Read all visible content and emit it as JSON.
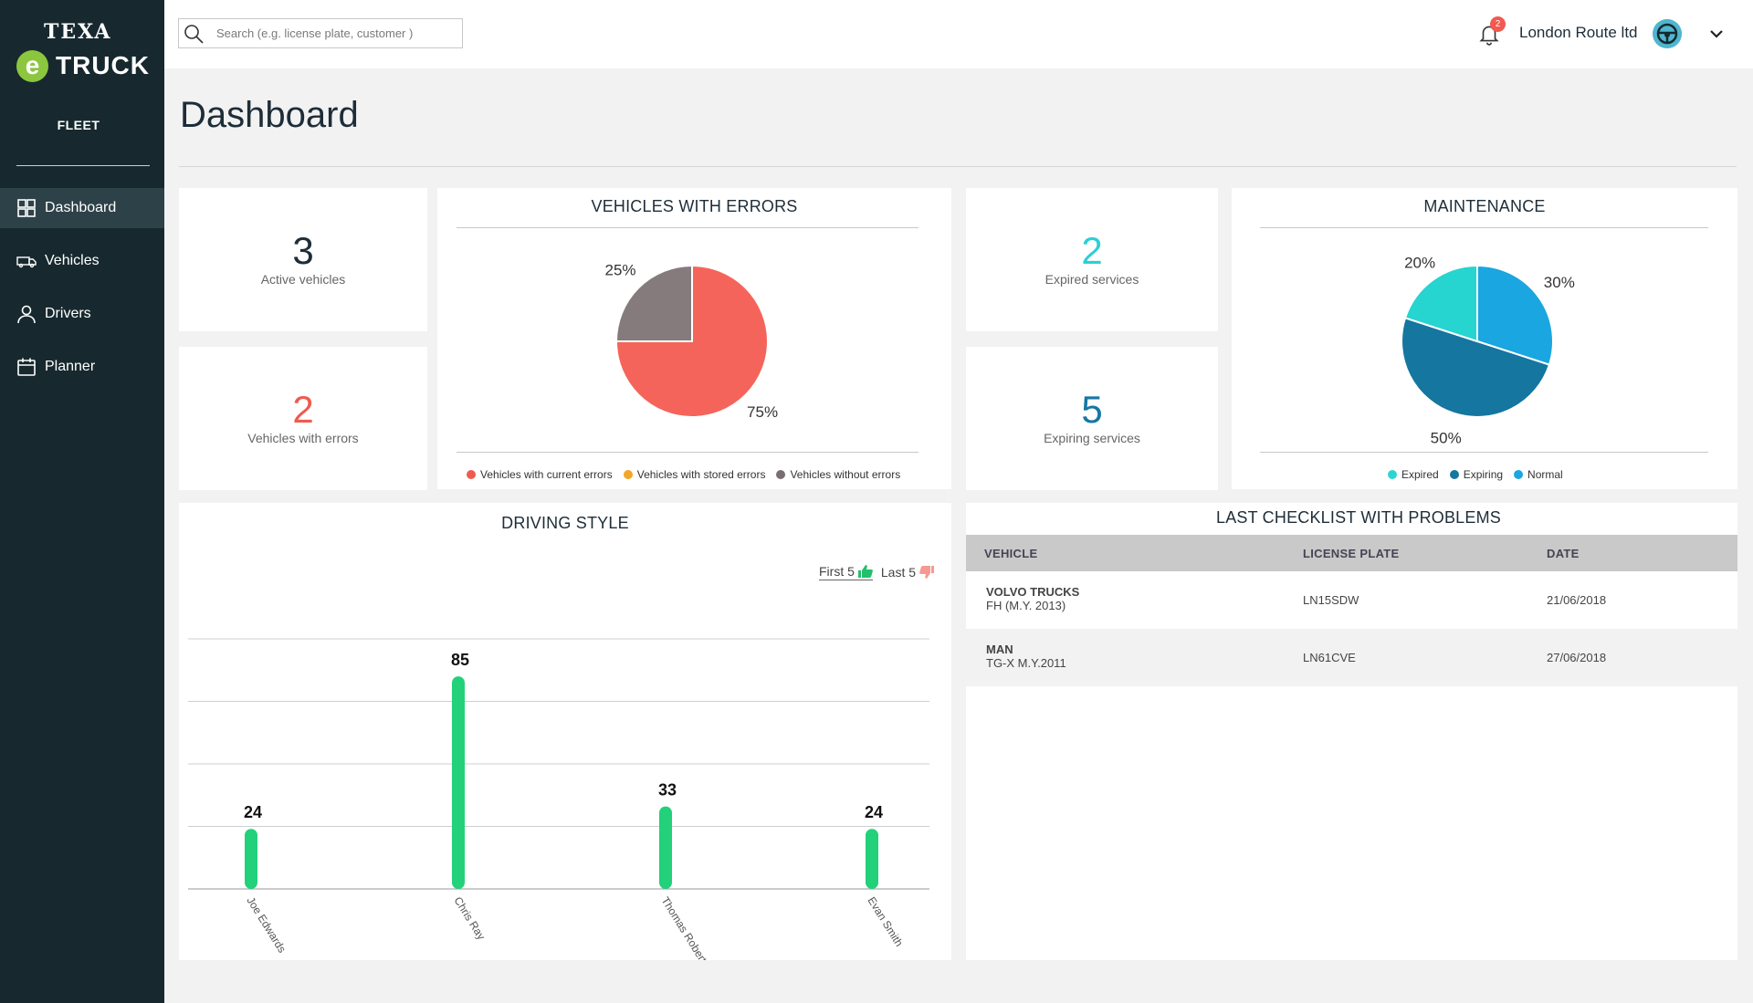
{
  "brand": {
    "top": "TEXA",
    "e": "e",
    "product": "TRUCK",
    "section": "FLEET"
  },
  "nav": [
    {
      "label": "Dashboard",
      "icon": "grid-icon",
      "active": true
    },
    {
      "label": "Vehicles",
      "icon": "truck-icon",
      "active": false
    },
    {
      "label": "Drivers",
      "icon": "user-icon",
      "active": false
    },
    {
      "label": "Planner",
      "icon": "calendar-icon",
      "active": false
    }
  ],
  "topbar": {
    "search_placeholder": "Search (e.g. license plate, customer )",
    "notifications": "2",
    "company": "London Route ltd"
  },
  "page": {
    "title": "Dashboard"
  },
  "stats": {
    "active_vehicles": {
      "value": "3",
      "label": "Active vehicles",
      "color": "#1e2d38"
    },
    "vehicles_with_errors": {
      "value": "2",
      "label": "Vehicles with errors",
      "color": "#f05a4f"
    },
    "expired_services": {
      "value": "2",
      "label": "Expired services",
      "color": "#2bcfd5"
    },
    "expiring_services": {
      "value": "5",
      "label": "Expiring services",
      "color": "#1677a3"
    }
  },
  "errors_card": {
    "title": "VEHICLES  WITH ERRORS",
    "legend": [
      "Vehicles with current errors",
      "Vehicles with stored errors",
      "Vehicles without errors"
    ],
    "legend_colors": [
      "#f05a4f",
      "#f5a623",
      "#7a6e70"
    ]
  },
  "maintenance_card": {
    "title": "MAINTENANCE",
    "legend": [
      "Expired",
      "Expiring",
      "Normal"
    ],
    "legend_colors": [
      "#2bd6d2",
      "#1576a0",
      "#1aa6e0"
    ]
  },
  "driving_card": {
    "title": "DRIVING STYLE",
    "toggle_first": "First 5",
    "toggle_last": "Last 5"
  },
  "checklist": {
    "title": "LAST CHECKLIST WITH PROBLEMS",
    "columns": [
      "VEHICLE",
      "LICENSE PLATE",
      "DATE"
    ],
    "rows": [
      {
        "make": "VOLVO TRUCKS",
        "model": "FH (M.Y. 2013)",
        "plate": "LN15SDW",
        "date": "21/06/2018"
      },
      {
        "make": "MAN",
        "model": "TG-X M.Y.2011",
        "plate": "LN61CVE",
        "date": "27/06/2018"
      }
    ]
  },
  "chart_data": [
    {
      "type": "pie",
      "title": "VEHICLES  WITH ERRORS",
      "labels": [
        "Vehicles with current errors",
        "Vehicles with stored errors",
        "Vehicles without errors"
      ],
      "values": [
        75,
        0,
        25
      ],
      "value_labels": [
        "75%",
        "",
        "25%"
      ],
      "colors": [
        "#f5645a",
        "#f5a623",
        "#857b7c"
      ]
    },
    {
      "type": "pie",
      "title": "MAINTENANCE",
      "labels": [
        "Normal",
        "Expiring",
        "Expired"
      ],
      "values": [
        30,
        50,
        20
      ],
      "value_labels": [
        "30%",
        "50%",
        "20%"
      ],
      "colors": [
        "#1aa6e0",
        "#1576a0",
        "#26d4d0"
      ]
    },
    {
      "type": "bar",
      "title": "DRIVING STYLE",
      "categories": [
        "Joe Edwards",
        "Chris Ray",
        "Thomas Roberts",
        "Evan Smith"
      ],
      "values": [
        24,
        85,
        33,
        24
      ],
      "ylim": [
        0,
        100
      ],
      "grid": true,
      "color": "#22d17a"
    }
  ]
}
